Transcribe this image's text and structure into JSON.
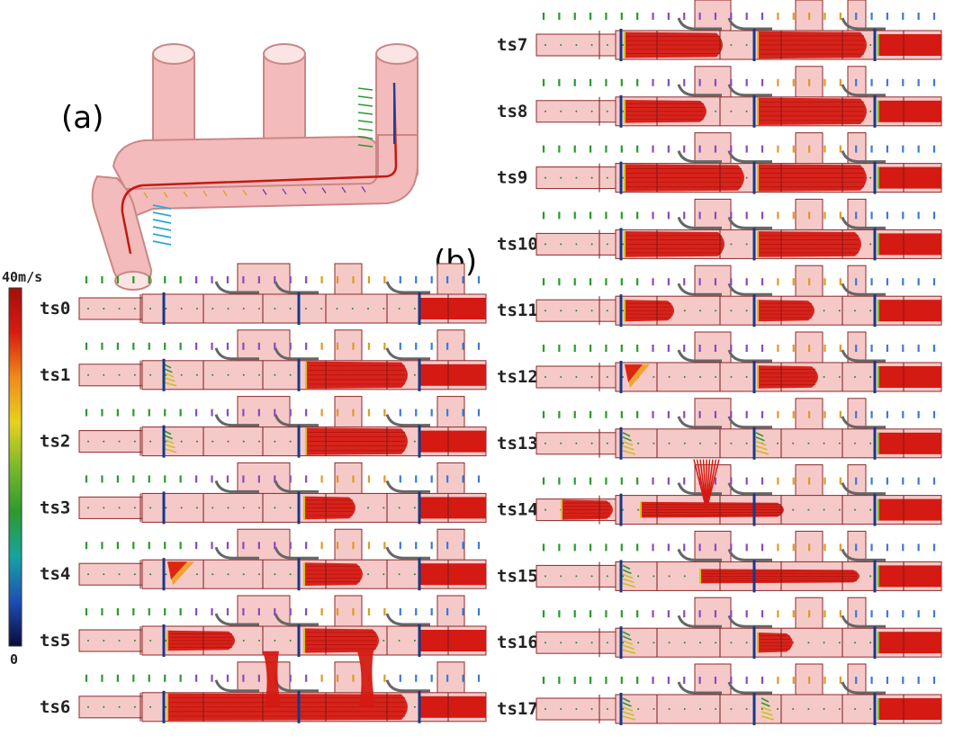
{
  "panel_labels": {
    "a": "(a)",
    "b": "(b)"
  },
  "colorbar": {
    "max_label": "40m/s",
    "min_label": "0",
    "colors": [
      "#0a0a3a",
      "#1d4fb5",
      "#17a3a0",
      "#2e9a2e",
      "#7cb82a",
      "#e6d21e",
      "#f08a1a",
      "#d61d10",
      "#a50e0a"
    ]
  },
  "colors": {
    "pipe_fill": "#f6c9c9",
    "pipe_edge": "#8a2a2a",
    "flow": "#d41a12",
    "valve": "#123a8a",
    "shadow": "#666666"
  },
  "left_frames": [
    {
      "label": "ts0",
      "flows": [],
      "jets": [],
      "leaks": [],
      "sprays": [],
      "plume": [],
      "tail": true
    },
    {
      "label": "ts1",
      "flows": [
        [
          340,
          460,
          0.95
        ]
      ],
      "jets": [],
      "leaks": [],
      "sprays": [
        182
      ],
      "plume": [],
      "tail": true
    },
    {
      "label": "ts2",
      "flows": [
        [
          340,
          460,
          0.95
        ]
      ],
      "jets": [],
      "leaks": [],
      "sprays": [
        182
      ],
      "plume": [],
      "tail": true
    },
    {
      "label": "ts3",
      "flows": [
        [
          338,
          402,
          0.8
        ]
      ],
      "jets": [],
      "leaks": [],
      "sprays": [],
      "plume": [],
      "tail": true
    },
    {
      "label": "ts4",
      "flows": [
        [
          338,
          410,
          0.8
        ]
      ],
      "jets": [],
      "leaks": [
        [
          186,
          216
        ]
      ],
      "sprays": [],
      "plume": [],
      "tail": true
    },
    {
      "label": "ts5",
      "flows": [
        [
          186,
          268,
          0.7
        ],
        [
          338,
          428,
          0.85
        ]
      ],
      "jets": [],
      "leaks": [],
      "sprays": [],
      "plume": [],
      "tail": true
    },
    {
      "label": "ts6",
      "flows": [
        [
          186,
          460,
          0.95
        ]
      ],
      "jets": [
        300,
        405
      ],
      "leaks": [],
      "sprays": [],
      "plume": [],
      "tail": true
    }
  ],
  "right_frames": [
    {
      "label": "ts7",
      "flows": [
        [
          694,
          810,
          0.9
        ],
        [
          842,
          970,
          0.95
        ]
      ],
      "jets": [],
      "leaks": [],
      "sprays": [],
      "plume": [],
      "tail": true
    },
    {
      "label": "ts8",
      "flows": [
        [
          694,
          792,
          0.8
        ],
        [
          842,
          970,
          0.95
        ]
      ],
      "jets": [],
      "leaks": [],
      "sprays": [],
      "plume": [],
      "tail": true
    },
    {
      "label": "ts9",
      "flows": [
        [
          694,
          834,
          0.95
        ],
        [
          842,
          970,
          0.95
        ]
      ],
      "jets": [],
      "leaks": [],
      "sprays": [],
      "plume": [],
      "tail": true
    },
    {
      "label": "ts10",
      "flows": [
        [
          694,
          812,
          0.9
        ],
        [
          842,
          964,
          0.9
        ]
      ],
      "jets": [],
      "leaks": [],
      "sprays": [],
      "plume": [],
      "tail": true
    },
    {
      "label": "ts11",
      "flows": [
        [
          694,
          756,
          0.75
        ],
        [
          842,
          912,
          0.75
        ]
      ],
      "jets": [],
      "leaks": [],
      "sprays": [],
      "plume": [],
      "tail": true
    },
    {
      "label": "ts12",
      "flows": [
        [
          842,
          916,
          0.8
        ]
      ],
      "jets": [],
      "leaks": [
        [
          694,
          722
        ]
      ],
      "sprays": [],
      "plume": [],
      "tail": true
    },
    {
      "label": "ts13",
      "flows": [],
      "jets": [],
      "leaks": [],
      "sprays": [
        692,
        840
      ],
      "plume": [],
      "tail": true
    },
    {
      "label": "ts14",
      "flows": [
        [
          624,
          688,
          0.7
        ],
        [
          712,
          878,
          0.55
        ]
      ],
      "jets": [],
      "leaks": [],
      "sprays": [],
      "plume": [
        785
      ],
      "tail": true
    },
    {
      "label": "ts15",
      "flows": [
        [
          778,
          962,
          0.5
        ]
      ],
      "jets": [],
      "leaks": [],
      "sprays": [
        692
      ],
      "plume": [],
      "tail": true
    },
    {
      "label": "ts16",
      "flows": [
        [
          842,
          888,
          0.7
        ]
      ],
      "jets": [],
      "leaks": [],
      "sprays": [
        692
      ],
      "plume": [],
      "tail": true
    },
    {
      "label": "ts17",
      "flows": [],
      "jets": [],
      "leaks": [],
      "sprays": [
        692,
        846
      ],
      "plume": [],
      "tail": true
    }
  ]
}
